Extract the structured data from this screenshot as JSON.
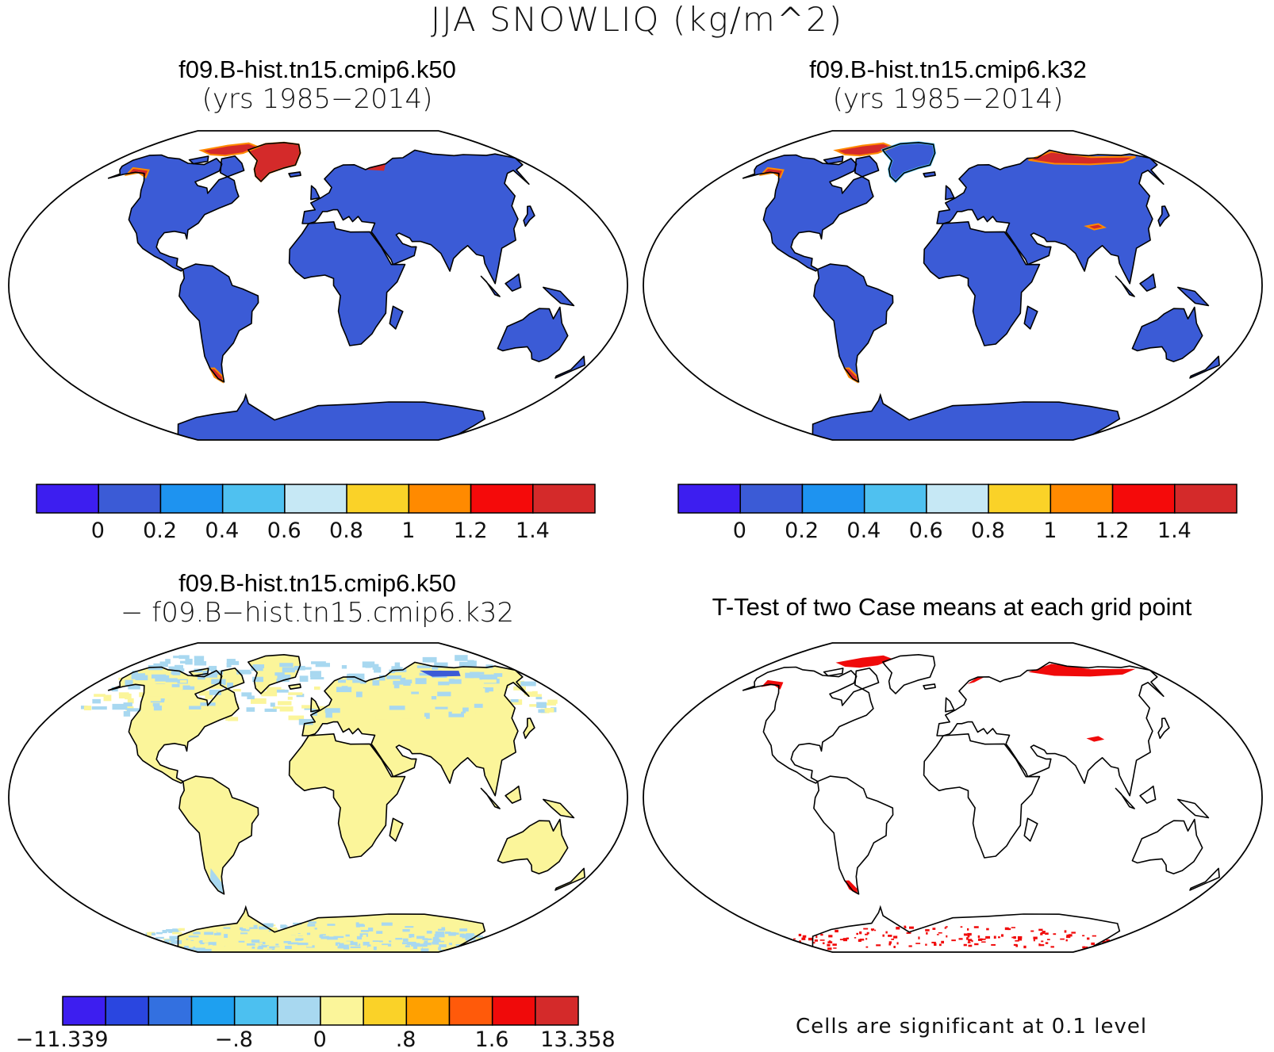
{
  "title": "JJA SNOWLIQ (kg/m^2)",
  "panels": {
    "case1": {
      "name": "f09.B-hist.tn15.cmip6.k50",
      "years": "(yrs 1985−2014)"
    },
    "case2": {
      "name": "f09.B-hist.tn15.cmip6.k32",
      "years": "(yrs 1985−2014)"
    },
    "diff": {
      "name": "f09.B-hist.tn15.cmip6.k50",
      "minus": "− f09.B−hist.tn15.cmip6.k32"
    },
    "ttest": {
      "title": "T-Test of two Case means at each grid point",
      "note": "Cells are significant at 0.1 level"
    }
  },
  "colorbars": {
    "case": {
      "colors": [
        "#3d1ef0",
        "#3b5bd6",
        "#1e93f0",
        "#4fc1f0",
        "#c6e8f5",
        "#fad228",
        "#ff8a00",
        "#f50a0a",
        "#d42a2a"
      ],
      "labels": [
        "0",
        "0.2",
        "0.4",
        "0.6",
        "0.8",
        "1",
        "1.2",
        "1.4"
      ]
    },
    "diff": {
      "colors": [
        "#3d1ef0",
        "#2a46e0",
        "#3370e0",
        "#1ea0f0",
        "#4cc0f0",
        "#a8d8f0",
        "#fbf59a",
        "#fad228",
        "#ffa000",
        "#ff5a0a",
        "#f00a0a",
        "#d42a2a"
      ],
      "labels": [
        "−11.339",
        "−.8",
        "0",
        ".8",
        "1.6",
        "13.358"
      ]
    }
  },
  "map_colors": {
    "case_land": "#3b5bd6",
    "diff_land": "#fbf59a",
    "diff_light": "#a8d8f0",
    "diff_dark": "#3b5bd6",
    "high": "#d42a2a",
    "mid": "#ff8a00",
    "light": "#4fc1f0",
    "significant": "#f00a0a"
  }
}
